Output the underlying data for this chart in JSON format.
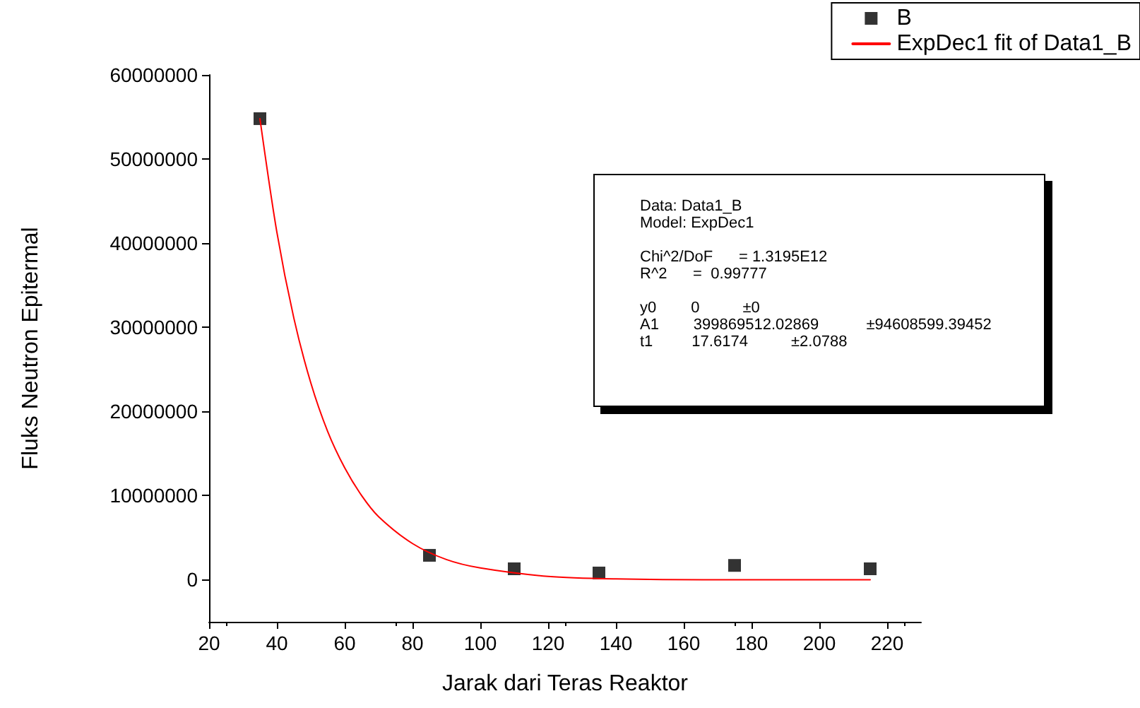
{
  "chart_data": {
    "type": "scatter",
    "xlabel": "Jarak dari Teras Reaktor",
    "ylabel": "Fluks Neutron Epitermal",
    "xlim": [
      20,
      230
    ],
    "xticks": [
      20,
      40,
      60,
      80,
      100,
      120,
      140,
      160,
      180,
      200,
      220
    ],
    "ylim": [
      -5000000,
      60000000
    ],
    "yticks": [
      0,
      10000000,
      20000000,
      30000000,
      40000000,
      50000000,
      60000000
    ],
    "grid": false,
    "legend": "top right",
    "series": [
      {
        "name": "B",
        "marker": "square",
        "color": "#000000",
        "x": [
          35,
          85,
          110,
          135,
          175,
          215
        ],
        "values": [
          54800000,
          2900000,
          1300000,
          800000,
          1700000,
          1300000
        ]
      },
      {
        "name": "ExpDec1 fit of Data1_B",
        "type": "line",
        "color": "#ff0000",
        "line_style": "solid",
        "marker": "none",
        "x": [
          35,
          40,
          45,
          50,
          55,
          60,
          65,
          70,
          80,
          90,
          100,
          120,
          140,
          170,
          215
        ],
        "values": [
          54800000,
          41300000,
          31100000,
          23400000,
          17600000,
          13300000,
          10000000,
          7500000,
          4300000,
          2400000,
          1400000,
          400000,
          100000,
          0,
          0
        ]
      }
    ],
    "annotations": [
      "Data: Data1_B\nModel: ExpDec1",
      "Chi^2/DoF      = 1.3195E12\nR^2      =  0.99777",
      "y0        0          ±0\nA1        399869512.02869           ±94608599.39452\nt1         17.6174          ±2.0788"
    ]
  }
}
